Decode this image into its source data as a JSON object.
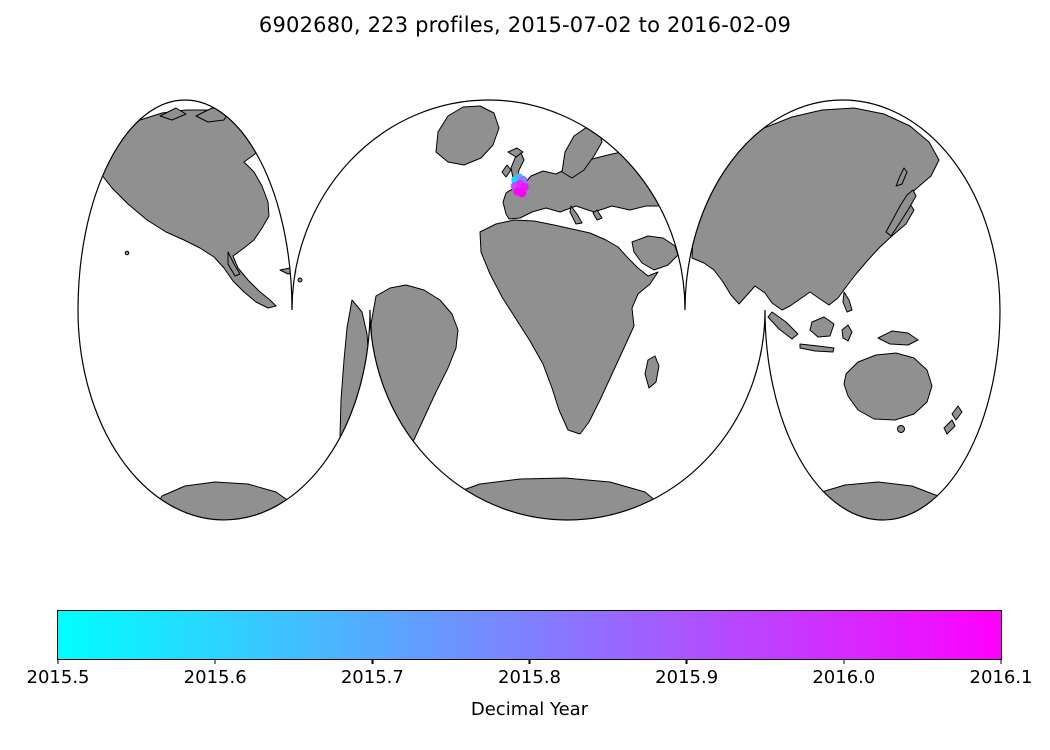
{
  "figure": {
    "title": "6902680, 223 profiles, 2015-07-02 to 2016-02-09",
    "background_color": "#ffffff"
  },
  "map": {
    "projection": "interrupted-world-three-lobes",
    "land_color": "#909090",
    "coastline_color": "#000000",
    "ocean_color": "#ffffff"
  },
  "chart_data": {
    "type": "scatter",
    "title": "6902680, 223 profiles, 2015-07-02 to 2016-02-09",
    "float_id": "6902680",
    "profile_count": 223,
    "date_range": {
      "start": "2015-07-02",
      "end": "2016-02-09"
    },
    "legend_position": "none",
    "colorbar": {
      "label": "Decimal Year",
      "orientation": "horizontal",
      "colormap": "cool",
      "color_min": "#00ffff",
      "color_max": "#ff00ff",
      "range": [
        2015.5,
        2016.1
      ],
      "ticks": [
        "2015.5",
        "2015.6",
        "2015.7",
        "2015.8",
        "2015.9",
        "2016.0",
        "2016.1"
      ]
    },
    "marker_radius": 4.3,
    "profile_markers": [
      {
        "x": 515.5,
        "y": 180.0,
        "color": "#00e4ff"
      },
      {
        "x": 519.0,
        "y": 177.5,
        "color": "#4fb2ff"
      },
      {
        "x": 523.0,
        "y": 180.0,
        "color": "#8f7bff"
      },
      {
        "x": 515.0,
        "y": 186.0,
        "color": "#c44dff"
      },
      {
        "x": 520.0,
        "y": 184.0,
        "color": "#da2cff"
      },
      {
        "x": 524.5,
        "y": 187.0,
        "color": "#ea14ff"
      },
      {
        "x": 517.5,
        "y": 191.5,
        "color": "#f705ff"
      },
      {
        "x": 522.0,
        "y": 193.0,
        "color": "#ff00ff"
      }
    ]
  }
}
